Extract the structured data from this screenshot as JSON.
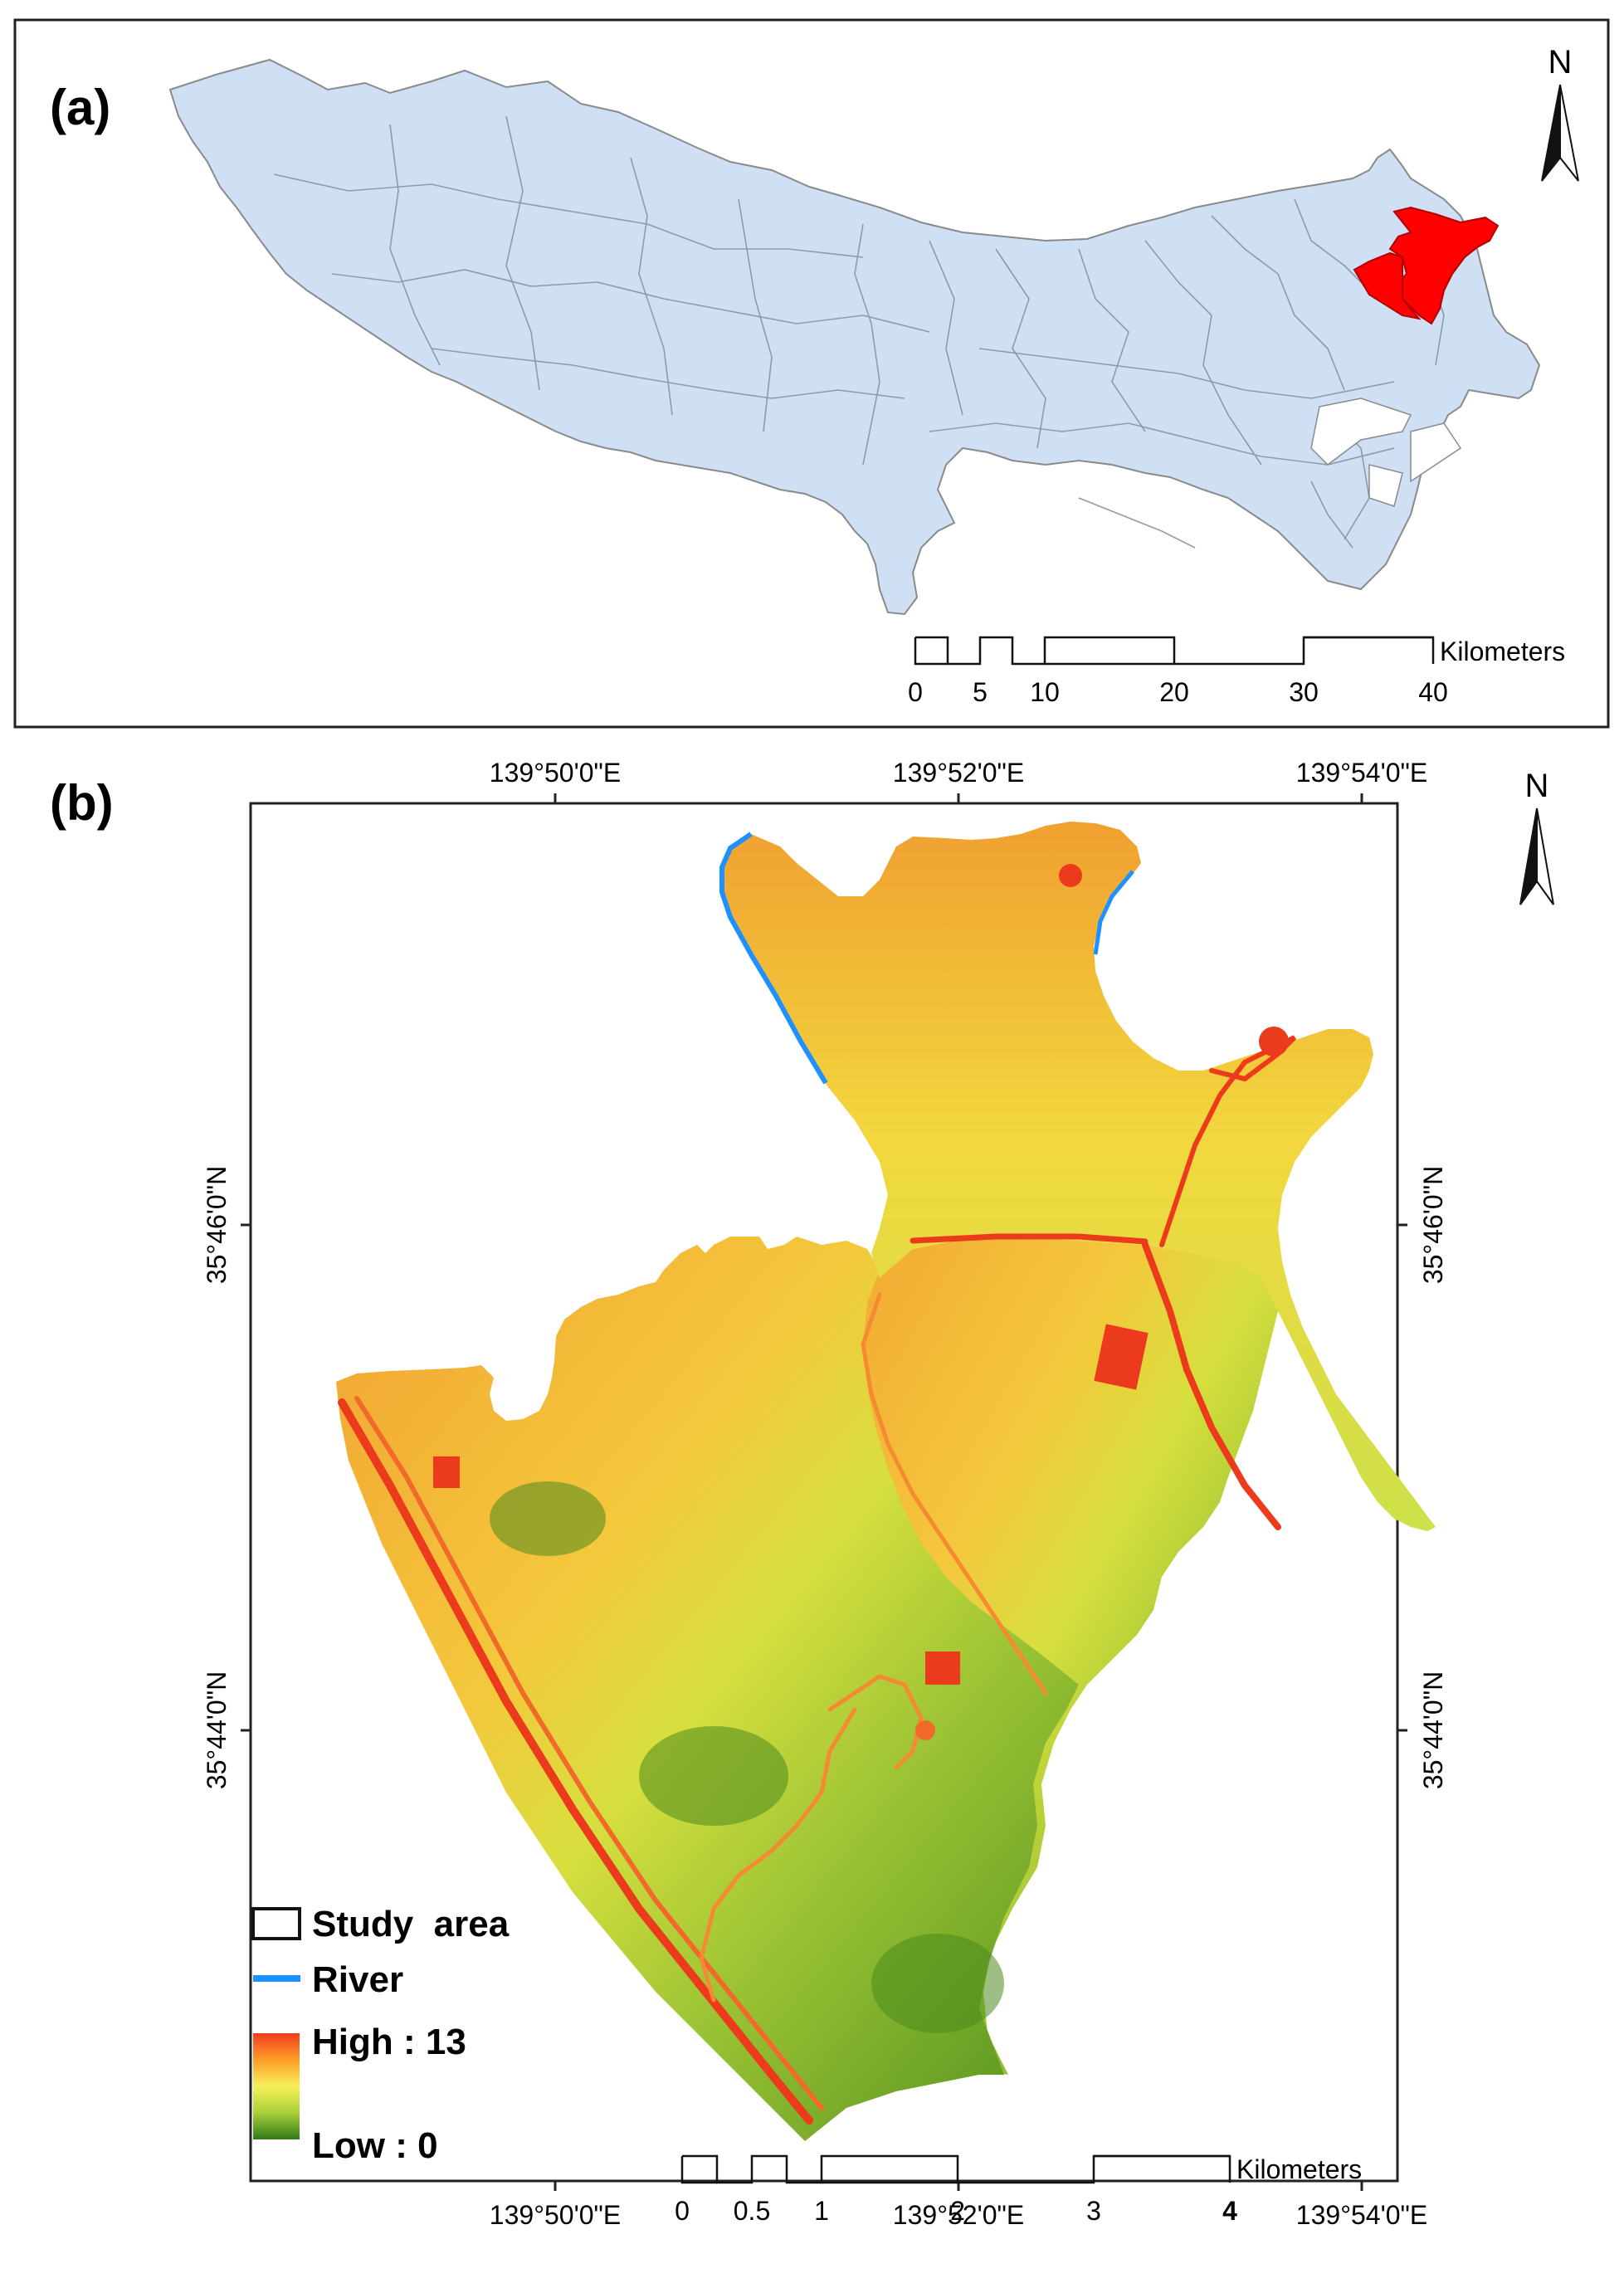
{
  "panel_a": {
    "label": "(a)",
    "north": "N",
    "scale": {
      "ticks": [
        "0",
        "5",
        "10",
        "20",
        "30",
        "40"
      ],
      "unit": "Kilometers"
    },
    "colors": {
      "region_fill": "#cfe0f5",
      "highlight": "#ff0000",
      "border": "#8a8a8a"
    }
  },
  "panel_b": {
    "label": "(b)",
    "north": "N",
    "longitudes": [
      "139°50'0\"E",
      "139°52'0\"E",
      "139°54'0\"E"
    ],
    "latitudes": [
      "35°46'0\"N",
      "35°44'0\"N"
    ],
    "legend": {
      "study_area": "Study  area",
      "river": "River",
      "high": "High : 13",
      "low": "Low : 0",
      "river_color": "#1e90ff",
      "ramp": [
        "#f03c1e",
        "#ff9e28",
        "#f6f05a",
        "#a9cf3a",
        "#2f7a16"
      ]
    },
    "scale": {
      "ticks": [
        "0",
        "0.5",
        "1",
        "2",
        "3",
        "4"
      ],
      "unit": "Kilometers"
    }
  }
}
